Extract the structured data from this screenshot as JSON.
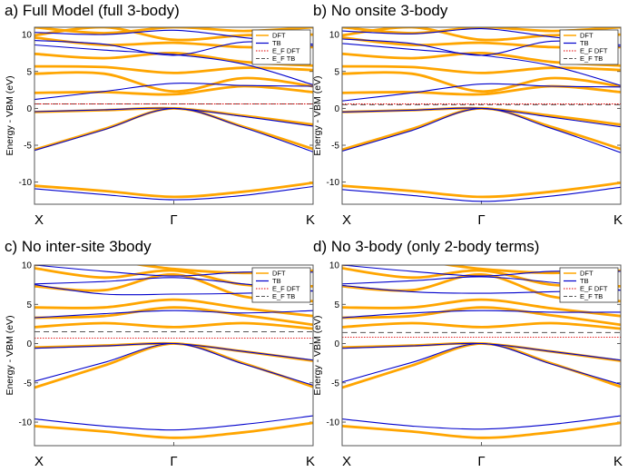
{
  "colors": {
    "dft": "#FFA500",
    "tb": "#0000CC",
    "ef_dft": "#E00000",
    "ef_tb": "#555555"
  },
  "chart_data": [
    {
      "type": "line",
      "title": "a)  Full Model (full 3-body)",
      "ylabel": "Energy - VBM (eV)",
      "ylim": [
        -13,
        11
      ],
      "yticks": [
        -10,
        -5,
        0,
        5,
        10
      ],
      "x_ticks": [
        "X",
        "Γ",
        "K"
      ],
      "legend": [
        "DFT",
        "TB",
        "E_F DFT",
        "E_F TB"
      ],
      "fermi": {
        "dft": 0.6,
        "tb": 0.6
      },
      "series": [
        {
          "name": "DFT",
          "bands": [
            [
              -10.5,
              -11.2,
              -12.0,
              -11.3,
              -10.1
            ],
            [
              -5.6,
              -2.8,
              0.0,
              -2.5,
              -5.5
            ],
            [
              -0.5,
              -0.25,
              0.0,
              -1.0,
              -2.2
            ],
            [
              2.1,
              2.2,
              1.9,
              3.0,
              2.2
            ],
            [
              4.7,
              4.7,
              2.3,
              4.1,
              3.0
            ],
            [
              5.7,
              5.6,
              4.8,
              5.5,
              5.2
            ],
            [
              7.4,
              6.8,
              7.5,
              6.3,
              5.8
            ],
            [
              9.6,
              8.6,
              8.9,
              8.3,
              8.3
            ],
            [
              9.9,
              11.0,
              9.3,
              9.9,
              10.0
            ],
            [
              11.0,
              10.2,
              11.0,
              10.5,
              11.0
            ]
          ]
        },
        {
          "name": "TB",
          "bands": [
            [
              -10.9,
              -11.7,
              -12.4,
              -11.8,
              -10.6
            ],
            [
              -5.7,
              -2.9,
              0.0,
              -2.6,
              -5.9
            ],
            [
              -0.45,
              -0.2,
              0.0,
              -1.1,
              -2.4
            ],
            [
              1.2,
              2.3,
              3.4,
              3.1,
              3.0
            ],
            [
              8.6,
              7.9,
              7.3,
              6.0,
              3.2
            ],
            [
              9.2,
              8.7,
              7.2,
              9.0,
              8.5
            ],
            [
              10.3,
              10.0,
              10.6,
              9.6,
              8.7
            ]
          ]
        }
      ]
    },
    {
      "type": "line",
      "title": "b)  No onsite 3-body",
      "ylabel": "Energy - VBM (eV)",
      "ylim": [
        -13,
        11
      ],
      "yticks": [
        -10,
        -5,
        0,
        5,
        10
      ],
      "x_ticks": [
        "X",
        "Γ",
        "K"
      ],
      "legend": [
        "DFT",
        "TB",
        "E_F DFT",
        "E_F TB"
      ],
      "fermi": {
        "dft": 0.6,
        "tb": 0.5
      },
      "series": [
        {
          "name": "DFT",
          "bands": [
            [
              -10.5,
              -11.2,
              -12.0,
              -11.3,
              -10.1
            ],
            [
              -5.6,
              -2.8,
              0.0,
              -2.5,
              -5.5
            ],
            [
              -0.5,
              -0.25,
              0.0,
              -1.0,
              -2.2
            ],
            [
              2.1,
              2.2,
              1.9,
              3.0,
              2.2
            ],
            [
              4.7,
              4.7,
              2.3,
              4.1,
              3.0
            ],
            [
              5.7,
              5.6,
              4.8,
              5.5,
              5.2
            ],
            [
              7.4,
              6.8,
              7.5,
              6.3,
              5.8
            ],
            [
              9.6,
              8.6,
              8.9,
              8.3,
              8.3
            ],
            [
              9.9,
              11.0,
              9.3,
              9.9,
              10.0
            ],
            [
              11.0,
              10.2,
              11.0,
              10.5,
              11.0
            ]
          ]
        },
        {
          "name": "TB",
          "bands": [
            [
              -11.0,
              -11.8,
              -12.6,
              -11.9,
              -10.7
            ],
            [
              -5.8,
              -3.0,
              0.0,
              -2.7,
              -6.0
            ],
            [
              -0.5,
              -0.25,
              0.0,
              -1.2,
              -2.5
            ],
            [
              1.0,
              2.1,
              3.3,
              3.0,
              2.9
            ],
            [
              8.8,
              8.0,
              7.2,
              5.8,
              3.1
            ],
            [
              9.4,
              8.8,
              7.2,
              9.1,
              8.4
            ],
            [
              10.5,
              10.1,
              10.8,
              9.7,
              8.6
            ]
          ]
        }
      ]
    },
    {
      "type": "line",
      "title": "c)  No inter-site 3body",
      "ylabel": "Energy - VBM (eV)",
      "ylim": [
        -13,
        10
      ],
      "yticks": [
        -10,
        -5,
        0,
        5,
        10
      ],
      "x_ticks": [
        "X",
        "Γ",
        "K"
      ],
      "legend": [
        "DFT",
        "TB",
        "E_F DFT",
        "E_F TB"
      ],
      "fermi": {
        "dft": 0.7,
        "tb": 1.5
      },
      "series": [
        {
          "name": "DFT",
          "bands": [
            [
              -10.5,
              -11.2,
              -12.0,
              -11.3,
              -10.1
            ],
            [
              -5.6,
              -2.8,
              0.0,
              -2.5,
              -5.5
            ],
            [
              -0.5,
              -0.25,
              0.0,
              -1.0,
              -2.2
            ],
            [
              2.1,
              2.6,
              2.1,
              2.6,
              1.9
            ],
            [
              3.3,
              3.5,
              4.6,
              3.6,
              2.4
            ],
            [
              4.6,
              4.6,
              5.6,
              4.5,
              3.5
            ],
            [
              7.3,
              6.8,
              8.8,
              6.0,
              5.4
            ],
            [
              9.6,
              8.4,
              9.3,
              7.5,
              7.3
            ],
            [
              10.0,
              10.5,
              9.5,
              9.0,
              9.3
            ]
          ]
        },
        {
          "name": "TB",
          "bands": [
            [
              -9.6,
              -10.5,
              -11.0,
              -10.3,
              -9.2
            ],
            [
              -4.8,
              -2.4,
              0.0,
              -2.6,
              -5.3
            ],
            [
              -0.6,
              -0.3,
              0.0,
              -1.0,
              -2.1
            ],
            [
              3.3,
              3.8,
              4.2,
              3.9,
              4.2
            ],
            [
              7.5,
              6.3,
              6.3,
              6.4,
              6.7
            ],
            [
              7.6,
              7.9,
              8.4,
              7.6,
              6.7
            ],
            [
              10.0,
              9.2,
              8.6,
              9.1,
              9.1
            ]
          ]
        }
      ]
    },
    {
      "type": "line",
      "title": "d)  No 3-body (only 2-body terms)",
      "ylabel": "Energy - VBM (eV)",
      "ylim": [
        -13,
        10
      ],
      "yticks": [
        -10,
        -5,
        0,
        5,
        10
      ],
      "x_ticks": [
        "X",
        "Γ",
        "K"
      ],
      "legend": [
        "DFT",
        "TB",
        "E_F DFT",
        "E_F TB"
      ],
      "fermi": {
        "dft": 0.8,
        "tb": 1.4
      },
      "series": [
        {
          "name": "DFT",
          "bands": [
            [
              -10.5,
              -11.2,
              -12.0,
              -11.3,
              -10.1
            ],
            [
              -5.6,
              -2.8,
              0.0,
              -2.5,
              -5.5
            ],
            [
              -0.5,
              -0.25,
              0.0,
              -1.0,
              -2.2
            ],
            [
              2.1,
              2.6,
              2.1,
              2.6,
              1.9
            ],
            [
              3.3,
              3.5,
              4.6,
              3.6,
              2.4
            ],
            [
              4.6,
              4.6,
              5.6,
              4.5,
              3.5
            ],
            [
              7.3,
              6.8,
              8.8,
              6.0,
              5.4
            ],
            [
              9.6,
              8.4,
              9.3,
              7.5,
              7.3
            ],
            [
              10.0,
              10.5,
              9.5,
              9.0,
              9.3
            ]
          ]
        },
        {
          "name": "TB",
          "bands": [
            [
              -9.6,
              -10.5,
              -10.9,
              -10.3,
              -9.2
            ],
            [
              -4.9,
              -2.4,
              0.0,
              -2.6,
              -5.2
            ],
            [
              -0.6,
              -0.3,
              0.0,
              -1.0,
              -2.1
            ],
            [
              3.3,
              3.9,
              4.2,
              4.0,
              4.0
            ],
            [
              7.4,
              6.6,
              6.4,
              6.6,
              6.8
            ],
            [
              7.6,
              8.0,
              8.5,
              7.8,
              6.8
            ],
            [
              10.0,
              9.2,
              8.6,
              9.2,
              9.2
            ]
          ]
        }
      ]
    }
  ]
}
